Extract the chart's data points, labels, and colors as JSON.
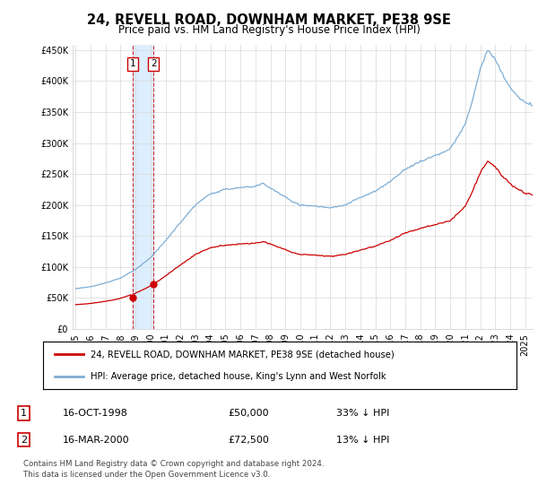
{
  "title": "24, REVELL ROAD, DOWNHAM MARKET, PE38 9SE",
  "subtitle": "Price paid vs. HM Land Registry's House Price Index (HPI)",
  "legend_line1": "24, REVELL ROAD, DOWNHAM MARKET, PE38 9SE (detached house)",
  "legend_line2": "HPI: Average price, detached house, King's Lynn and West Norfolk",
  "transaction1_date": "16-OCT-1998",
  "transaction1_price": "£50,000",
  "transaction1_hpi": "33% ↓ HPI",
  "transaction1_year": 1998.79,
  "transaction1_value": 50000,
  "transaction2_date": "16-MAR-2000",
  "transaction2_price": "£72,500",
  "transaction2_hpi": "13% ↓ HPI",
  "transaction2_year": 2000.21,
  "transaction2_value": 72500,
  "footer": "Contains HM Land Registry data © Crown copyright and database right 2024.\nThis data is licensed under the Open Government Licence v3.0.",
  "red_color": "#cc0000",
  "blue_color": "#7eadd4",
  "shade_color": "#ddeeff",
  "ylim_min": 0,
  "ylim_max": 450000,
  "yticks": [
    0,
    50000,
    100000,
    150000,
    200000,
    250000,
    300000,
    350000,
    400000,
    450000
  ],
  "xmin": 1994.8,
  "xmax": 2025.5
}
